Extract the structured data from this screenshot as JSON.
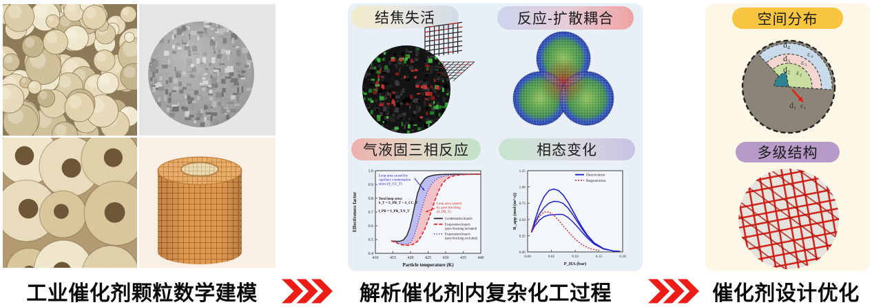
{
  "footer": {
    "steps": [
      "工业催化剂颗粒数学建模",
      "解析催化剂内复杂化工过程",
      "催化剂设计优化"
    ]
  },
  "middle_card": {
    "panels": [
      {
        "label": "结焦失活"
      },
      {
        "label": "反应-扩散耦合"
      },
      {
        "label": "气液固三相反应"
      },
      {
        "label": "相态变化"
      }
    ]
  },
  "right_card": {
    "panels": [
      {
        "label": "空间分布"
      },
      {
        "label": "多级结构"
      }
    ],
    "distribution": {
      "labels": [
        {
          "text": "d₄"
        },
        {
          "text": "ε₄"
        },
        {
          "text": "d₃"
        },
        {
          "text": "ε₃"
        },
        {
          "text": "d₂"
        },
        {
          "text": "ε₂"
        },
        {
          "text": "d₁"
        },
        {
          "text": "ε₁"
        }
      ]
    }
  },
  "colors": {
    "accent_red": "#ed1c16",
    "middle_card_bg": "#e9eff6",
    "right_card_bg": "#fcf7e7",
    "spatial_pill": "#f8c63e",
    "hier_pill": "#b79ac8"
  },
  "chart_data": [
    {
      "id": "hysteresis",
      "type": "line",
      "xlabel": "Particle temperature (K)",
      "ylabel": "Effectiveness factor",
      "xlim": [
        410,
        440
      ],
      "ylim": [
        0.4,
        1.0
      ],
      "xticks": [
        410,
        415,
        420,
        425,
        430,
        435,
        440
      ],
      "yticks": [
        0.4,
        0.5,
        0.6,
        0.7,
        0.8,
        0.9,
        1.0
      ],
      "xtick_labels": [
        "410",
        "415",
        "420",
        "425",
        "430",
        "435",
        "440"
      ],
      "ytick_labels": [
        "0.4",
        "0.5",
        "0.6",
        "0.7",
        "0.8",
        "0.9",
        "1.0"
      ],
      "series": [
        {
          "name": "Condensation branch",
          "color": "#2b2b2b",
          "dash": "",
          "width": 1.5,
          "x": [
            414.5,
            416,
            417,
            418,
            419,
            419.8,
            420.5,
            421.2,
            422,
            423,
            424,
            425,
            426.5,
            428,
            430,
            433,
            436,
            440
          ],
          "y": [
            0.49,
            0.487,
            0.488,
            0.497,
            0.53,
            0.585,
            0.66,
            0.745,
            0.835,
            0.905,
            0.94,
            0.957,
            0.967,
            0.972,
            0.974,
            0.975,
            0.975,
            0.975
          ]
        },
        {
          "name": "Evaporation branch (pore blocking excluded)",
          "color": "#3333cc",
          "dash": "1.2,2.4",
          "width": 1.3,
          "x": [
            414.5,
            416,
            417,
            418,
            419,
            420,
            421,
            422,
            423,
            424,
            425,
            426,
            427,
            428,
            430,
            433,
            436,
            440
          ],
          "y": [
            0.49,
            0.477,
            0.469,
            0.465,
            0.467,
            0.479,
            0.525,
            0.61,
            0.705,
            0.79,
            0.857,
            0.903,
            0.93,
            0.948,
            0.963,
            0.972,
            0.974,
            0.975
          ]
        },
        {
          "name": "Evaporation branch (pore blocking included)",
          "color": "#e03030",
          "dash": "5,2.5",
          "width": 1.7,
          "x": [
            414.5,
            416,
            417,
            418,
            419,
            420,
            421,
            422,
            423,
            424,
            425,
            426,
            427,
            428,
            429,
            430,
            431,
            432,
            434,
            436,
            440
          ],
          "y": [
            0.49,
            0.477,
            0.466,
            0.46,
            0.458,
            0.46,
            0.468,
            0.487,
            0.522,
            0.572,
            0.638,
            0.712,
            0.788,
            0.853,
            0.903,
            0.934,
            0.951,
            0.961,
            0.97,
            0.973,
            0.975
          ]
        }
      ],
      "fills": [
        {
          "between": [
            0,
            1
          ],
          "color": "rgba(105,105,225,0.40)"
        },
        {
          "between": [
            1,
            2
          ],
          "color": "rgba(240,130,140,0.45)"
        }
      ],
      "legend": {
        "fx": 0.555,
        "fy": 0.56,
        "entries": [
          {
            "series": 0,
            "lines": [
              "Condensation branch"
            ]
          },
          {
            "series": 2,
            "lines": [
              "Evaporation branch",
              "(pore blocking included)"
            ]
          },
          {
            "series": 1,
            "lines": [
              "Evaporation branch",
              "(pore blocking excluded)"
            ]
          }
        ]
      },
      "annotations": [
        {
          "fx": 0.03,
          "fy": 0.02,
          "color": "#2a2ac8",
          "bold": false,
          "lines": [
            "Loop area caused by",
            "capillary condensation",
            "alone (S_CC_T)"
          ]
        },
        {
          "fx": 0.03,
          "fy": 0.3,
          "color": "#111111",
          "bold": true,
          "lines": [
            "Total loop area:",
            "S_T = S_PB_T + S_CC_T",
            "",
            "f_PB = S_PB_T/S_T"
          ]
        },
        {
          "fx": 0.58,
          "fy": 0.36,
          "color": "#d92b2b",
          "bold": false,
          "lines": [
            "Loop area caused",
            "by pore blocking",
            "(S_PB_T)"
          ]
        }
      ],
      "arrows": [
        {
          "fx1": 0.37,
          "fy1": 0.09,
          "fx2": 0.465,
          "fy2": 0.24,
          "color": "#2a2ac8"
        },
        {
          "fx1": 0.565,
          "fy1": 0.455,
          "fx2": 0.475,
          "fy2": 0.5,
          "color": "#d92b2b"
        }
      ]
    },
    {
      "id": "deactivation",
      "type": "line",
      "xlabel": "P_HA (bar)",
      "ylabel": "R_app (mol/(m³·s))",
      "xlim": [
        0,
        0.2
      ],
      "ylim": [
        0,
        1.25
      ],
      "xticks": [
        0.0,
        0.05,
        0.1,
        0.15,
        0.2
      ],
      "yticks": [
        0.0,
        0.25,
        0.5,
        0.75,
        1.0,
        1.25
      ],
      "xtick_labels": [
        "0.00",
        "0.05",
        "0.10",
        "0.15",
        "0.20"
      ],
      "ytick_labels": [
        "0.00",
        "0.25",
        "0.50",
        "0.75",
        "1.00",
        "1.25"
      ],
      "series": [
        {
          "name": "Deactivation",
          "color": "#2222cc",
          "dash": "",
          "width": 1.6,
          "x": [
            0.008,
            0.015,
            0.025,
            0.035,
            0.045,
            0.055,
            0.065,
            0.075,
            0.085,
            0.095,
            0.105,
            0.115,
            0.125,
            0.14,
            0.16,
            0.18,
            0.195
          ],
          "y": [
            0.3,
            0.48,
            0.7,
            0.855,
            0.945,
            0.968,
            0.945,
            0.875,
            0.765,
            0.635,
            0.5,
            0.375,
            0.265,
            0.14,
            0.05,
            0.015,
            0.008
          ]
        },
        {
          "name": "Deactivation (mid)",
          "color": "#2222cc",
          "dash": "",
          "width": 1.5,
          "x": [
            0.008,
            0.015,
            0.025,
            0.035,
            0.045,
            0.055,
            0.065,
            0.075,
            0.085,
            0.095,
            0.105,
            0.115,
            0.125,
            0.14,
            0.16,
            0.18,
            0.195
          ],
          "y": [
            0.3,
            0.44,
            0.585,
            0.685,
            0.75,
            0.778,
            0.775,
            0.745,
            0.675,
            0.575,
            0.46,
            0.35,
            0.25,
            0.135,
            0.05,
            0.015,
            0.008
          ]
        },
        {
          "name": "Deactivation (low)",
          "color": "#2222cc",
          "dash": "",
          "width": 1.5,
          "x": [
            0.008,
            0.015,
            0.025,
            0.035,
            0.045,
            0.055,
            0.065,
            0.075,
            0.085,
            0.095,
            0.105,
            0.115,
            0.125,
            0.14,
            0.16,
            0.18,
            0.195
          ],
          "y": [
            0.3,
            0.4,
            0.49,
            0.545,
            0.568,
            0.572,
            0.578,
            0.575,
            0.53,
            0.465,
            0.385,
            0.3,
            0.22,
            0.12,
            0.045,
            0.015,
            0.008
          ]
        },
        {
          "name": "Regeneration",
          "color": "#dd2222",
          "dash": "2,2",
          "width": 1.4,
          "x": [
            0.008,
            0.015,
            0.025,
            0.035,
            0.045,
            0.055,
            0.065,
            0.075,
            0.085,
            0.095,
            0.105,
            0.115,
            0.13,
            0.15
          ],
          "y": [
            0.3,
            0.43,
            0.55,
            0.615,
            0.615,
            0.565,
            0.49,
            0.4,
            0.315,
            0.235,
            0.165,
            0.11,
            0.055,
            0.02
          ]
        }
      ],
      "fills": [],
      "legend": {
        "fx": 0.5,
        "fy": 0.03,
        "entries": [
          {
            "series": 0,
            "lines": [
              "Deactivation"
            ]
          },
          {
            "series": 3,
            "lines": [
              "Regeneration"
            ]
          }
        ]
      },
      "annotations": [],
      "arrows": []
    }
  ]
}
